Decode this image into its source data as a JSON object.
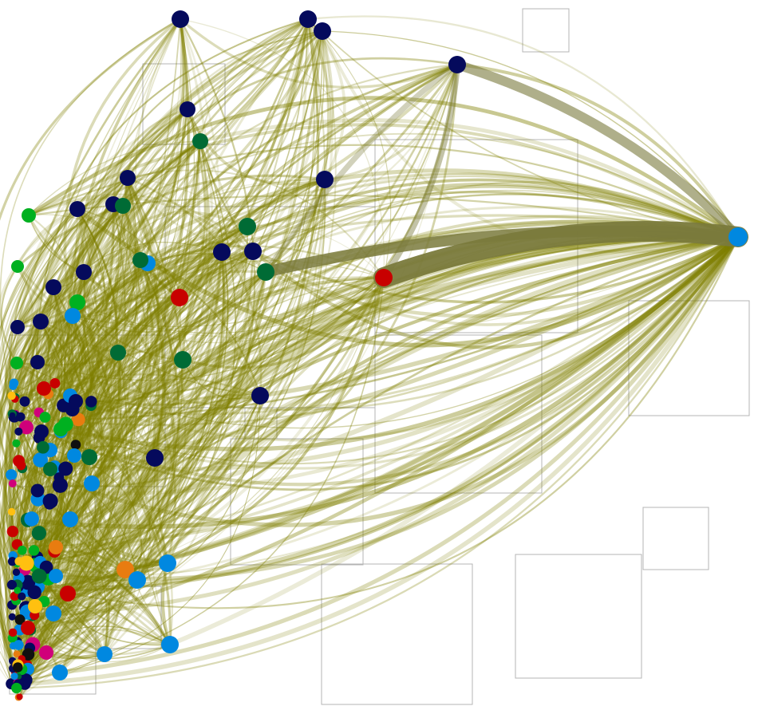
{
  "graph": {
    "edge_color": "#7f7f00",
    "heavy_edge_color": "#7a7a3c",
    "palette": {
      "navy": "#050a5c",
      "dark_green": "#006b35",
      "green": "#00b020",
      "red": "#c80000",
      "blue": "#0088e0",
      "orange": "#e87c10",
      "yellow": "#ffc010",
      "magenta": "#d0007a",
      "black": "#101010"
    },
    "group_count": 14,
    "node_count": 160
  }
}
